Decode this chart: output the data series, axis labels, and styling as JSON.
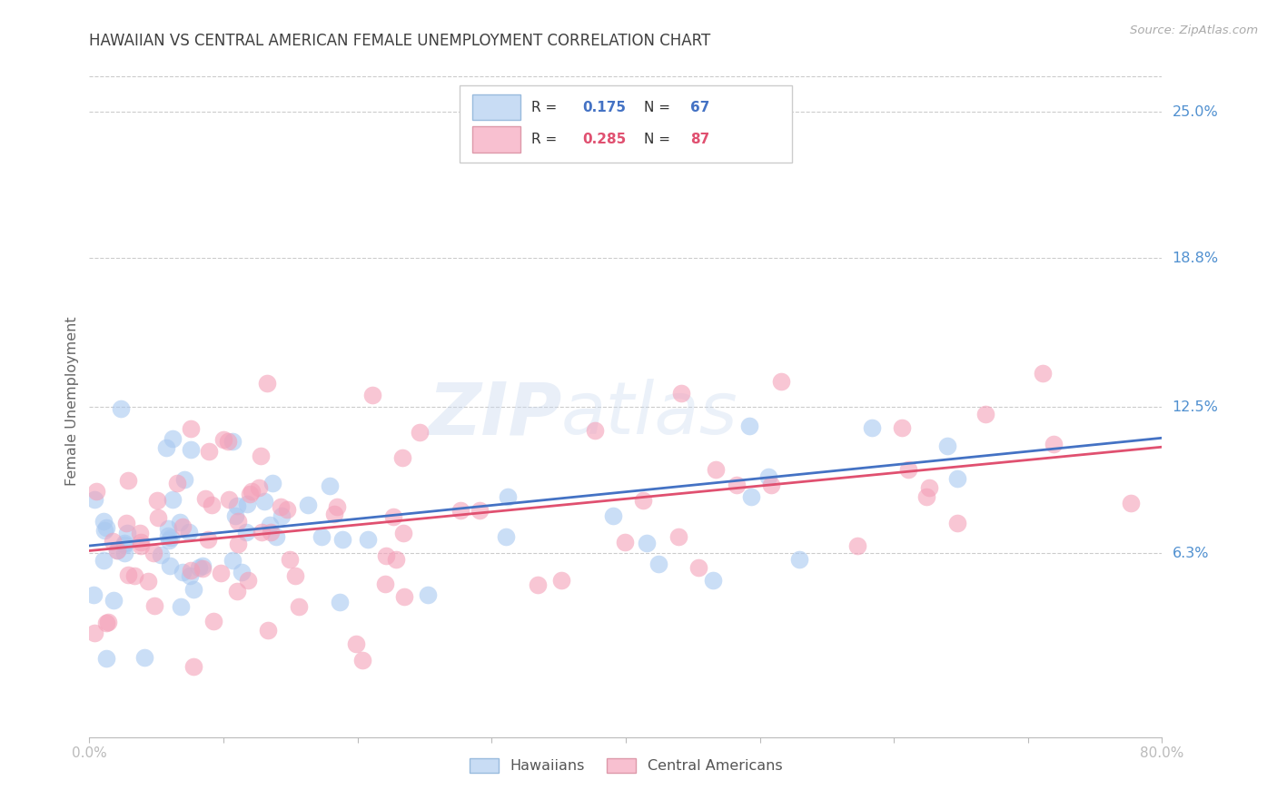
{
  "title": "HAWAIIAN VS CENTRAL AMERICAN FEMALE UNEMPLOYMENT CORRELATION CHART",
  "source": "Source: ZipAtlas.com",
  "ylabel": "Female Unemployment",
  "ytick_labels": [
    "25.0%",
    "18.8%",
    "12.5%",
    "6.3%"
  ],
  "ytick_values": [
    0.25,
    0.188,
    0.125,
    0.063
  ],
  "xmin": 0.0,
  "xmax": 0.8,
  "ymin": -0.015,
  "ymax": 0.27,
  "hawaiian_color": "#a8c8f0",
  "central_color": "#f4a0b8",
  "hawaiian_line_color": "#4472c4",
  "central_line_color": "#e05070",
  "hawaiian_R": 0.175,
  "hawaiian_N": 67,
  "central_R": 0.285,
  "central_N": 87,
  "watermark_zip": "ZIP",
  "watermark_atlas": "atlas",
  "background_color": "#ffffff",
  "grid_color": "#cccccc",
  "title_color": "#404040",
  "axis_label_color": "#666666",
  "right_tick_color": "#5090d0",
  "legend_box_color_h": "#c8dcf4",
  "legend_box_color_c": "#f8c0d0",
  "legend_text_R_h": "R = ",
  "legend_val_R_h": "0.175",
  "legend_text_N_h": "N = ",
  "legend_val_N_h": "67",
  "legend_text_R_c": "R = ",
  "legend_val_R_c": "0.285",
  "legend_text_N_c": "N = ",
  "legend_val_N_c": "87"
}
